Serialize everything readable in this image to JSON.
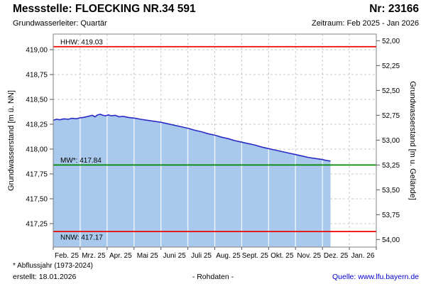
{
  "header": {
    "title": "Messstelle: FLOECKING NR.34 591",
    "station_nr": "Nr: 23166",
    "aquifer": "Grundwasserleiter: Quartär",
    "period": "Zeitraum: Feb 2025 - Jan 2026"
  },
  "footer": {
    "footnote": "* Abflussjahr (1973-2024)",
    "created": "erstellt:  18.01.2026",
    "data_type": "- Rohdaten -",
    "source": "Quelle: www.lfu.bayern.de",
    "source_color": "#0000cc"
  },
  "chart_data": {
    "type": "area",
    "title": "",
    "ylabel_left": "Grundwasserstand [m ü. NN]",
    "ylabel_right": "Grundwasserstand [m u. Gelände]",
    "x_categories": [
      "Feb. 25",
      "Mrz. 25",
      "Apr. 25",
      "Mai 25",
      "Juni 25",
      "Juli 25",
      "Aug. 25",
      "Sept. 25",
      "Okt. 25",
      "Nov. 25",
      "Dez. 25",
      "Jan. 26"
    ],
    "y_left_ticks": [
      {
        "label": "419,00",
        "value": 419.0
      },
      {
        "label": "418,75",
        "value": 418.75
      },
      {
        "label": "418,50",
        "value": 418.5
      },
      {
        "label": "418,25",
        "value": 418.25
      },
      {
        "label": "418,00",
        "value": 418.0
      },
      {
        "label": "417,75",
        "value": 417.75
      },
      {
        "label": "417,50",
        "value": 417.5
      },
      {
        "label": "417,25",
        "value": 417.25
      }
    ],
    "y_right_ticks": [
      {
        "label": "52,00",
        "depth": 52.0
      },
      {
        "label": "52,25",
        "depth": 52.25
      },
      {
        "label": "52,50",
        "depth": 52.5
      },
      {
        "label": "52,75",
        "depth": 52.75
      },
      {
        "label": "53,00",
        "depth": 53.0
      },
      {
        "label": "53,25",
        "depth": 53.25
      },
      {
        "label": "53,50",
        "depth": 53.5
      },
      {
        "label": "53,75",
        "depth": 53.75
      },
      {
        "label": "54,00",
        "depth": 54.0
      }
    ],
    "y_left_range": [
      417.014,
      419.157
    ],
    "right_axis_ground_elevation": 471.09,
    "reference_lines": [
      {
        "name": "HHW",
        "label": "HHW: 419.03",
        "value": 419.03,
        "color": "#ee0000",
        "label_pos": "above"
      },
      {
        "name": "MW",
        "label": "MW*: 417.84",
        "value": 417.84,
        "color": "#008800",
        "label_pos": "above"
      },
      {
        "name": "NNW",
        "label": "NNW: 417.17",
        "value": 417.17,
        "color": "#ee0000",
        "label_pos": "below"
      }
    ],
    "series": [
      {
        "name": "Grundwasserstand Rohdaten",
        "line_color": "#2a2ac8",
        "fill_color": "#a9c9ec",
        "points": [
          [
            0.0,
            418.29
          ],
          [
            0.12,
            418.3
          ],
          [
            0.25,
            418.295
          ],
          [
            0.4,
            418.305
          ],
          [
            0.55,
            418.3
          ],
          [
            0.7,
            418.31
          ],
          [
            0.85,
            418.305
          ],
          [
            1.0,
            418.315
          ],
          [
            1.15,
            418.32
          ],
          [
            1.3,
            418.33
          ],
          [
            1.45,
            418.34
          ],
          [
            1.55,
            418.325
          ],
          [
            1.65,
            418.345
          ],
          [
            1.75,
            418.35
          ],
          [
            1.85,
            418.34
          ],
          [
            1.95,
            418.335
          ],
          [
            2.05,
            418.345
          ],
          [
            2.15,
            418.335
          ],
          [
            2.3,
            418.34
          ],
          [
            2.45,
            418.325
          ],
          [
            2.6,
            418.33
          ],
          [
            2.75,
            418.32
          ],
          [
            2.9,
            418.315
          ],
          [
            3.05,
            418.31
          ],
          [
            3.25,
            418.3
          ],
          [
            3.5,
            418.29
          ],
          [
            3.75,
            418.28
          ],
          [
            4.0,
            418.27
          ],
          [
            4.25,
            418.255
          ],
          [
            4.5,
            418.24
          ],
          [
            4.75,
            418.225
          ],
          [
            5.0,
            418.21
          ],
          [
            5.25,
            418.19
          ],
          [
            5.5,
            418.175
          ],
          [
            5.75,
            418.155
          ],
          [
            6.0,
            418.14
          ],
          [
            6.25,
            418.12
          ],
          [
            6.5,
            418.105
          ],
          [
            6.75,
            418.085
          ],
          [
            7.0,
            418.07
          ],
          [
            7.25,
            418.055
          ],
          [
            7.5,
            418.04
          ],
          [
            7.75,
            418.02
          ],
          [
            8.0,
            418.005
          ],
          [
            8.25,
            417.99
          ],
          [
            8.5,
            417.975
          ],
          [
            8.75,
            417.96
          ],
          [
            9.0,
            417.945
          ],
          [
            9.25,
            417.93
          ],
          [
            9.5,
            417.915
          ],
          [
            9.75,
            417.905
          ],
          [
            10.0,
            417.895
          ],
          [
            10.15,
            417.885
          ],
          [
            10.3,
            417.88
          ]
        ]
      }
    ],
    "grid": {
      "color": "#c9c9c9",
      "dash": "3,3"
    },
    "frame_color": "#808080",
    "tick_color": "#555555"
  }
}
